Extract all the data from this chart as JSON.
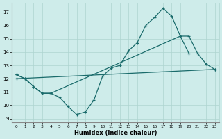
{
  "xlabel": "Humidex (Indice chaleur)",
  "background_color": "#ceecea",
  "grid_color": "#add4d0",
  "line_color": "#1a6b6b",
  "xlim": [
    -0.5,
    23.5
  ],
  "ylim": [
    8.7,
    17.7
  ],
  "yticks": [
    9,
    10,
    11,
    12,
    13,
    14,
    15,
    16,
    17
  ],
  "xticks": [
    0,
    1,
    2,
    3,
    4,
    5,
    6,
    7,
    8,
    9,
    10,
    11,
    12,
    13,
    14,
    15,
    16,
    17,
    18,
    19,
    20,
    21,
    22,
    23
  ],
  "line1_x": [
    0,
    1,
    2,
    3,
    4,
    5,
    6,
    7,
    8,
    9,
    10,
    11,
    12,
    13,
    14,
    15,
    16,
    17,
    18,
    19,
    20
  ],
  "line1_y": [
    12.3,
    12.0,
    11.4,
    10.9,
    10.9,
    10.6,
    9.9,
    9.3,
    9.5,
    10.4,
    12.2,
    12.8,
    13.0,
    14.1,
    14.7,
    16.0,
    16.6,
    17.3,
    16.7,
    15.2,
    13.9
  ],
  "line2_x": [
    0,
    1,
    2,
    3,
    4,
    19,
    20,
    21,
    22,
    23
  ],
  "line2_y": [
    12.3,
    12.0,
    11.4,
    10.9,
    10.9,
    15.2,
    15.2,
    13.9,
    13.1,
    12.7
  ],
  "line3_x": [
    0,
    23
  ],
  "line3_y": [
    12.0,
    12.7
  ]
}
